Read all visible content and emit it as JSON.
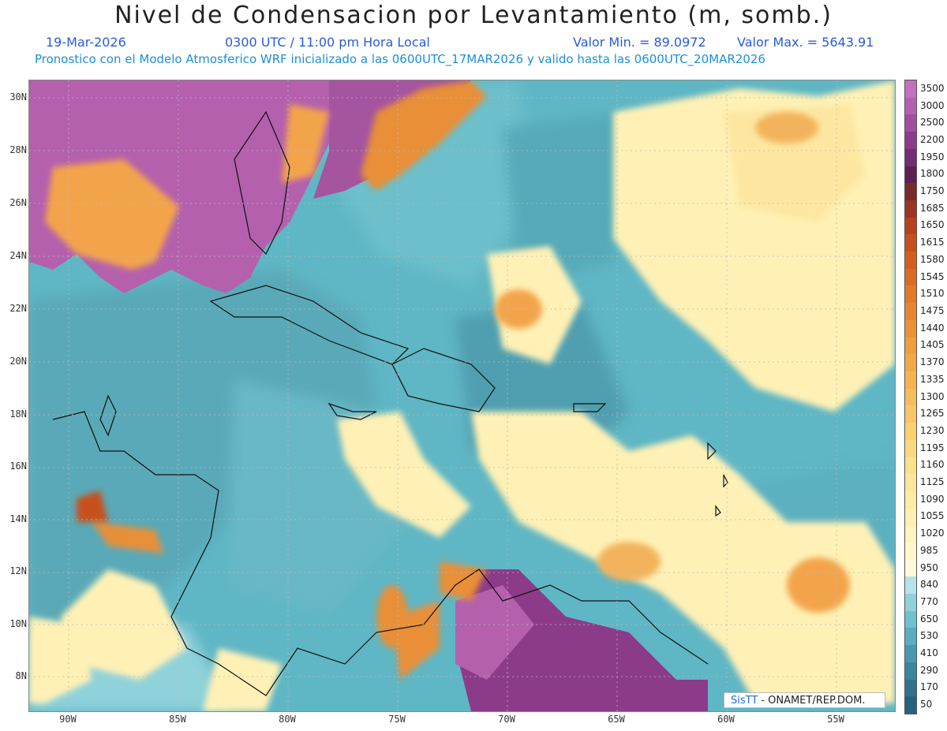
{
  "title": "Nivel de Condensacion por Levantamiento (m, somb.)",
  "date": "19-Mar-2026",
  "time": "0300 UTC / 11:00 pm Hora Local",
  "valmin": "Valor Min. = 89.0972",
  "valmax": "Valor Max. = 5643.91",
  "forecast": "Pronostico con el Modelo Atmosferico WRF inicializado a las 0600UTC_17MAR2026 y valido hasta las  0600UTC_20MAR2026",
  "credit": {
    "logo": "SisTT",
    "text": "- ONAMET/REP.DOM."
  },
  "y_ticks": [
    "30N",
    "28N",
    "26N",
    "24N",
    "22N",
    "20N",
    "18N",
    "16N",
    "14N",
    "12N",
    "10N",
    "8N"
  ],
  "x_ticks": [
    "90W",
    "85W",
    "80W",
    "75W",
    "70W",
    "65W",
    "60W",
    "55W"
  ],
  "colorbar": {
    "labels": [
      "3500",
      "3000",
      "2500",
      "2200",
      "1950",
      "1800",
      "1750",
      "1685",
      "1650",
      "1615",
      "1580",
      "1545",
      "1510",
      "1475",
      "1440",
      "1405",
      "1370",
      "1335",
      "1300",
      "1265",
      "1230",
      "1195",
      "1160",
      "1125",
      "1090",
      "1055",
      "1020",
      "985",
      "950",
      "840",
      "770",
      "650",
      "530",
      "410",
      "290",
      "170",
      "50"
    ],
    "colors": [
      "#c46fc0",
      "#b55fb3",
      "#a24e9f",
      "#8c3b89",
      "#742c72",
      "#5e1f55",
      "#7a2a2a",
      "#9c3524",
      "#b6421f",
      "#c8501e",
      "#d45e20",
      "#dc6c24",
      "#e27a2a",
      "#e68630",
      "#ea9236",
      "#ee9e3e",
      "#f1a947",
      "#f4b350",
      "#f6bd5b",
      "#f8c666",
      "#fad071",
      "#fbd87d",
      "#fce08a",
      "#fde697",
      "#feeba4",
      "#fef0b1",
      "#fff3bf",
      "#fff6cb",
      "#fff9d8",
      "#b6e3ea",
      "#8fd2dd",
      "#6fc1cf",
      "#58adbf",
      "#4799ad",
      "#3a869c",
      "#2f748c",
      "#25637c"
    ]
  },
  "legend_colors": {
    "ocean_mid": "#5fb6c4",
    "ocean_light": "#8ed3dc",
    "ocean_dark": "#3f8fa2",
    "yellow": "#fff1b5",
    "orange": "#f3a44b",
    "purple": "#b460ad",
    "darkpurple": "#7a2b6f"
  }
}
